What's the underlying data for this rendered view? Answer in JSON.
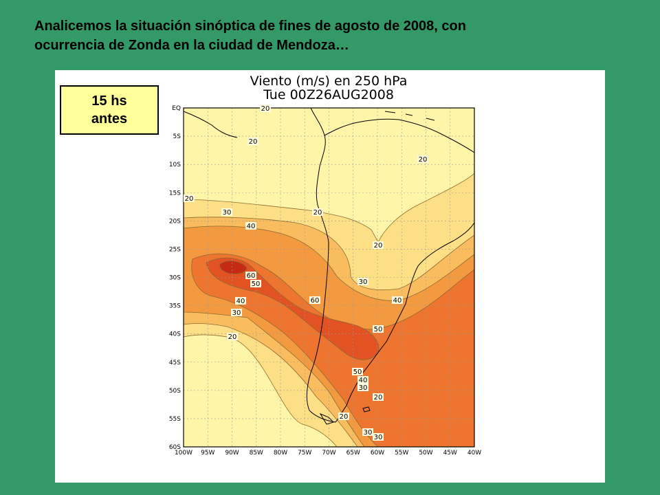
{
  "slide": {
    "title_line1": "Analicemos la situación sinóptica de fines de agosto de 2008, con",
    "title_line2": "ocurrencia de Zonda en la ciudad de Mendoza…"
  },
  "time_box": {
    "line1": "15 hs",
    "line2": "antes"
  },
  "map": {
    "title_line1": "Viento (m/s) en 250 hPa",
    "title_line2": "Tue 00Z26AUG2008",
    "lat_labels": [
      "EQ",
      "5S",
      "10S",
      "15S",
      "20S",
      "25S",
      "30S",
      "35S",
      "40S",
      "45S",
      "50S",
      "55S",
      "60S"
    ],
    "lon_labels": [
      "100W",
      "95W",
      "90W",
      "85W",
      "80W",
      "75W",
      "70W",
      "65W",
      "60W",
      "55W",
      "50W",
      "45W",
      "40W"
    ],
    "contour_labels": [
      {
        "text": "20"
      },
      {
        "text": "20"
      },
      {
        "text": "20"
      },
      {
        "text": "20"
      },
      {
        "text": "20"
      },
      {
        "text": "20"
      },
      {
        "text": "30"
      },
      {
        "text": "40"
      },
      {
        "text": "60"
      },
      {
        "text": "50"
      },
      {
        "text": "40"
      },
      {
        "text": "30"
      },
      {
        "text": "20"
      },
      {
        "text": "60"
      },
      {
        "text": "30"
      },
      {
        "text": "40"
      },
      {
        "text": "50"
      },
      {
        "text": "50"
      },
      {
        "text": "40"
      },
      {
        "text": "30"
      },
      {
        "text": "20"
      },
      {
        "text": "20"
      },
      {
        "text": "30"
      },
      {
        "text": "30"
      }
    ],
    "levels_m_s": [
      20,
      30,
      40,
      50,
      60
    ],
    "fill_colors": [
      "#fff5a8",
      "#fddf85",
      "#f9bd5f",
      "#f39a40",
      "#ed7530",
      "#e35222",
      "#c52a14"
    ],
    "line_color": "#8a6a30",
    "coast_color": "#000000",
    "grid_color": "#9a9a9a"
  }
}
